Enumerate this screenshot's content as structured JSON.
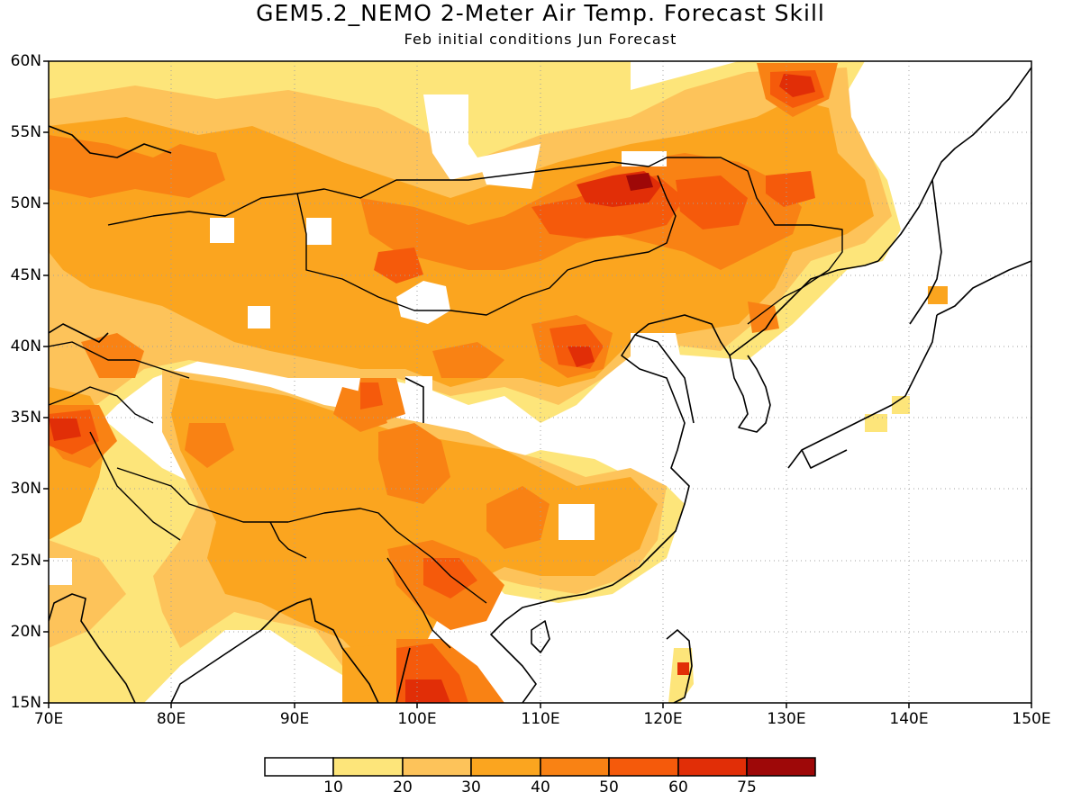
{
  "title": "GEM5.2_NEMO 2-Meter Air Temp. Forecast Skill",
  "subtitle": "Feb initial conditions  Jun Forecast",
  "lat_labels": [
    "60N",
    "55N",
    "50N",
    "45N",
    "40N",
    "35N",
    "30N",
    "25N",
    "20N",
    "15N"
  ],
  "lon_labels": [
    "70E",
    "80E",
    "90E",
    "100E",
    "110E",
    "120E",
    "130E",
    "140E",
    "150E"
  ],
  "colorbar": {
    "tick_labels": [
      "10",
      "20",
      "30",
      "40",
      "50",
      "60",
      "75"
    ],
    "colors": [
      "#ffffff",
      "#fde57a",
      "#fdc35a",
      "#fba51f",
      "#f98214",
      "#f55a0b",
      "#e12e07",
      "#9e0808"
    ]
  },
  "map_extent": {
    "lon": [
      70,
      150
    ],
    "lat": [
      15,
      60
    ]
  }
}
